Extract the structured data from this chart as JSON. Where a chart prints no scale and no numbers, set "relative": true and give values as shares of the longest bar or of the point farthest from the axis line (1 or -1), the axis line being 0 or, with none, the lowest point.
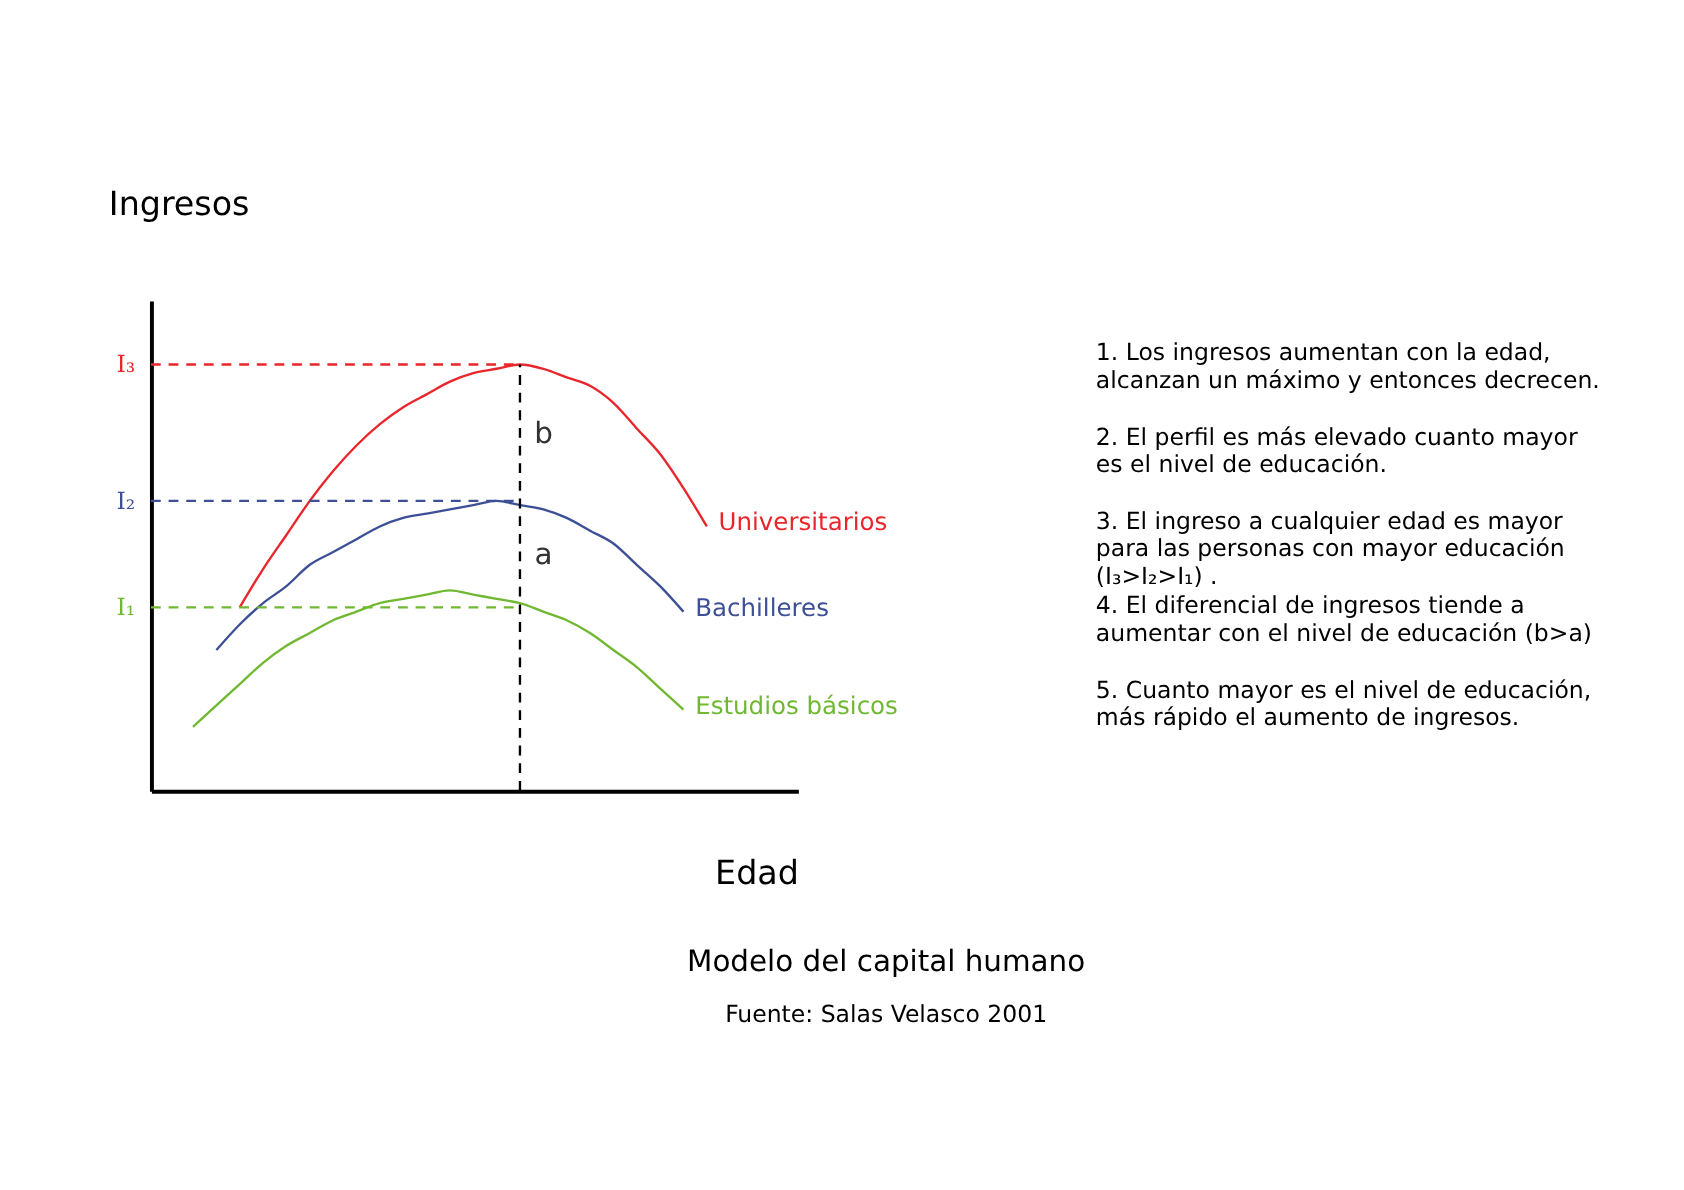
{
  "chart_data": {
    "type": "line",
    "title": "Modelo del capital humano",
    "xlabel": "Edad",
    "ylabel": "Ingresos",
    "relative": true,
    "grid": false,
    "legend": false,
    "marker": "none",
    "line_style": "solid",
    "categories": [
      null,
      null,
      null,
      null,
      null,
      null,
      null,
      null,
      null,
      null,
      null,
      null,
      null,
      null,
      null,
      null,
      null,
      null,
      null,
      null,
      null,
      null,
      null
    ],
    "series": [
      {
        "name": "Universitarios",
        "color": "#e8262b",
        "values": [
          null,
          null,
          0.43,
          0.52,
          0.6,
          0.68,
          0.75,
          0.81,
          0.86,
          0.9,
          0.93,
          0.96,
          0.98,
          0.99,
          1.0,
          0.99,
          0.97,
          0.95,
          0.91,
          0.85,
          0.79,
          0.71,
          0.62
        ]
      },
      {
        "name": "Bachilleres",
        "color": "#3d4f96",
        "values": [
          null,
          0.33,
          0.39,
          0.44,
          0.48,
          0.53,
          0.56,
          0.59,
          0.62,
          0.64,
          0.65,
          0.66,
          0.67,
          0.68,
          0.67,
          0.66,
          0.64,
          0.61,
          0.58,
          0.53,
          0.48,
          0.42,
          null
        ]
      },
      {
        "name": "Estudios básicos",
        "color": "#71b832",
        "values": [
          0.15,
          0.2,
          0.25,
          0.3,
          0.34,
          0.37,
          0.4,
          0.42,
          0.44,
          0.45,
          0.46,
          0.47,
          0.46,
          0.45,
          0.44,
          0.42,
          0.4,
          0.37,
          0.33,
          0.29,
          0.24,
          0.19,
          null
        ]
      }
    ],
    "ref_lines": [
      {
        "axis": "y",
        "value": 1.0,
        "label": "I₃",
        "color": "#e8262b",
        "line_style": "dashed"
      },
      {
        "axis": "y",
        "value": 0.68,
        "label": "I₂",
        "color": "#3d4f96",
        "line_style": "dashed"
      },
      {
        "axis": "y",
        "value": 0.43,
        "label": "I₁",
        "color": "#71b832",
        "line_style": "dashed"
      }
    ],
    "annotations": [
      "b",
      "a",
      "1. Los ingresos aumentan con la edad, alcanzan un máximo y entonces decrecen.",
      "2. El perfil es más elevado cuanto mayor es el nivel de educación.",
      "3. El ingreso a cualquier edad es mayor para las personas con mayor educación (I₃>I₂>I₁) .",
      "4. El diferencial de ingresos tiende a aumentar con el nivel de educación  (b>a)",
      "5. Cuanto mayor es el nivel de educación, más rápido el aumento de ingresos.",
      "Fuente: Salas Velasco 2001"
    ]
  }
}
